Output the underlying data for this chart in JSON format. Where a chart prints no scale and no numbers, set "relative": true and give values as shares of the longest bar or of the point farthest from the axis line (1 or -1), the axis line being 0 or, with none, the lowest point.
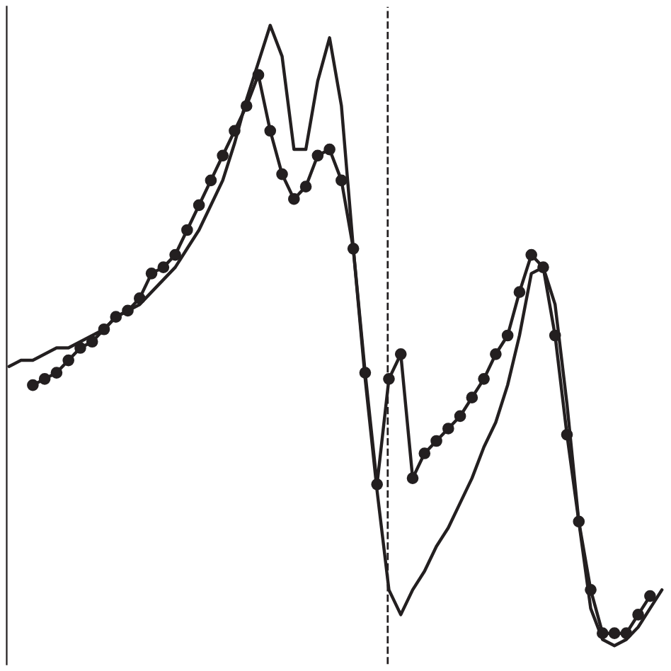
{
  "chart_data": {
    "type": "line",
    "relative": true,
    "categories": [
      null,
      null,
      null,
      null,
      null,
      null,
      null,
      null,
      null,
      null,
      null,
      null,
      null,
      null,
      null,
      null,
      null,
      null,
      null,
      null,
      null,
      null,
      null,
      null,
      null,
      null,
      null,
      null,
      null,
      null,
      null,
      null,
      null,
      null,
      null,
      null,
      null,
      null,
      null,
      null,
      null,
      null,
      null,
      null,
      null,
      null,
      null,
      null,
      null,
      null,
      null,
      null,
      null,
      null,
      null,
      null
    ],
    "series": [
      {
        "color": "#231f20",
        "marker": "circle",
        "values": [
          null,
          null,
          0.42,
          0.43,
          0.44,
          0.46,
          0.48,
          0.49,
          0.51,
          0.53,
          0.54,
          0.56,
          0.6,
          0.61,
          0.63,
          0.67,
          0.71,
          0.75,
          0.79,
          0.83,
          0.87,
          0.92,
          0.83,
          0.76,
          0.72,
          0.74,
          0.79,
          0.8,
          0.75,
          0.64,
          0.44,
          0.26,
          0.43,
          0.47,
          0.27,
          0.31,
          0.33,
          0.35,
          0.37,
          0.4,
          0.43,
          0.47,
          0.5,
          0.57,
          0.63,
          0.61,
          0.5,
          0.34,
          0.2,
          0.09,
          0.02,
          0.02,
          0.02,
          0.05,
          0.08,
          null
        ]
      },
      {
        "color": "#231f20",
        "marker": "none",
        "values": [
          0.45,
          0.46,
          0.46,
          0.47,
          0.48,
          0.48,
          0.49,
          0.5,
          0.51,
          0.53,
          0.54,
          0.55,
          0.57,
          0.59,
          0.61,
          0.64,
          0.67,
          0.71,
          0.75,
          0.81,
          0.88,
          0.94,
          1.0,
          0.95,
          0.8,
          0.8,
          0.91,
          0.98,
          0.87,
          0.64,
          0.43,
          0.25,
          0.09,
          0.05,
          0.09,
          0.12,
          0.16,
          0.19,
          0.23,
          0.27,
          0.32,
          0.36,
          0.42,
          0.5,
          0.6,
          0.61,
          0.55,
          0.39,
          0.2,
          0.06,
          0.01,
          0,
          0.01,
          0.03,
          0.06,
          0.09
        ]
      }
    ],
    "legend": false
  }
}
